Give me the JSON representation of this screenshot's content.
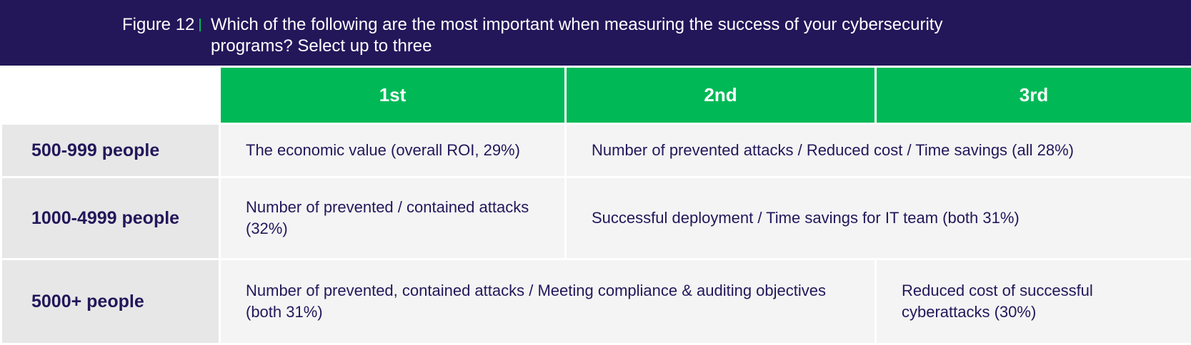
{
  "figure": {
    "label": "Figure 12",
    "title": "Which of the following are the most important when measuring the success of your cybersecurity programs? Select up to three"
  },
  "columns": [
    "1st",
    "2nd",
    "3rd"
  ],
  "rows": [
    {
      "label": "500-999 people",
      "first": "The economic value (overall ROI, 29%)",
      "second_third": "Number of prevented attacks / Reduced cost / Time savings (all 28%)"
    },
    {
      "label": "1000-4999 people",
      "first": "Number of prevented / contained attacks (32%)",
      "second_third": "Successful deployment / Time savings for IT team (both 31%)"
    },
    {
      "label": "5000+ people",
      "first_second": "Number of prevented, contained attacks / Meeting compliance & auditing objectives (both 31%)",
      "third": "Reduced cost of successful cyberattacks (30%)"
    }
  ],
  "colors": {
    "header_bg": "#23175a",
    "accent_green": "#00b956",
    "row_label_bg": "#e7e7e7",
    "cell_bg": "#f4f4f4",
    "text_dark": "#23175a"
  }
}
